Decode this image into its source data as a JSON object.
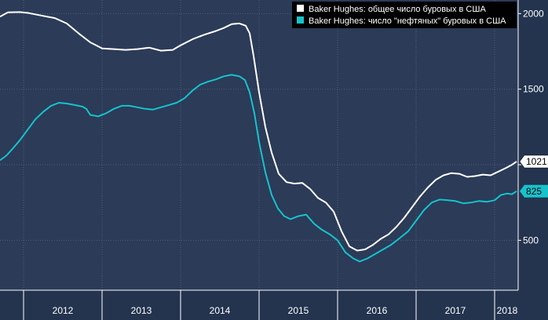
{
  "colors": {
    "background": "#24344f",
    "plot_background": "#2b3b58",
    "grid": "#4f6079",
    "series_total": "#ffffff",
    "series_oil": "#16c3cc"
  },
  "chart_data": {
    "type": "line",
    "title": "",
    "xlabel": "",
    "ylabel": "",
    "x_unit": "year (decimal)",
    "xlim": [
      2011.7,
      2018.3
    ],
    "ylim": [
      170,
      2090
    ],
    "y_axis_side": "right",
    "grid": true,
    "legend_position": "top-right",
    "x_ticks": [
      2012,
      2013,
      2014,
      2015,
      2016,
      2017,
      2018
    ],
    "y_ticks": [
      500,
      1000,
      1500,
      2000
    ],
    "y_tick_labels": [
      "500",
      "",
      "1500",
      "2000"
    ],
    "series": [
      {
        "name": "Baker Hughes: общее число буровых в США",
        "color": "#ffffff",
        "last_value_label": "1021",
        "points": [
          [
            2011.7,
            1980
          ],
          [
            2011.8,
            2008
          ],
          [
            2011.95,
            2010
          ],
          [
            2012.05,
            2005
          ],
          [
            2012.2,
            1990
          ],
          [
            2012.4,
            1970
          ],
          [
            2012.55,
            1935
          ],
          [
            2012.7,
            1870
          ],
          [
            2012.85,
            1810
          ],
          [
            2013.0,
            1770
          ],
          [
            2013.15,
            1765
          ],
          [
            2013.3,
            1760
          ],
          [
            2013.45,
            1765
          ],
          [
            2013.6,
            1775
          ],
          [
            2013.75,
            1755
          ],
          [
            2013.9,
            1760
          ],
          [
            2014.0,
            1790
          ],
          [
            2014.15,
            1830
          ],
          [
            2014.3,
            1860
          ],
          [
            2014.45,
            1885
          ],
          [
            2014.55,
            1905
          ],
          [
            2014.65,
            1930
          ],
          [
            2014.75,
            1935
          ],
          [
            2014.83,
            1920
          ],
          [
            2014.88,
            1870
          ],
          [
            2014.93,
            1720
          ],
          [
            2015.0,
            1480
          ],
          [
            2015.08,
            1250
          ],
          [
            2015.16,
            1080
          ],
          [
            2015.25,
            940
          ],
          [
            2015.35,
            885
          ],
          [
            2015.45,
            875
          ],
          [
            2015.55,
            880
          ],
          [
            2015.65,
            840
          ],
          [
            2015.75,
            780
          ],
          [
            2015.85,
            750
          ],
          [
            2015.95,
            690
          ],
          [
            2016.05,
            560
          ],
          [
            2016.15,
            460
          ],
          [
            2016.25,
            432
          ],
          [
            2016.35,
            440
          ],
          [
            2016.45,
            470
          ],
          [
            2016.55,
            510
          ],
          [
            2016.65,
            540
          ],
          [
            2016.75,
            590
          ],
          [
            2016.85,
            650
          ],
          [
            2016.95,
            720
          ],
          [
            2017.05,
            790
          ],
          [
            2017.15,
            850
          ],
          [
            2017.25,
            900
          ],
          [
            2017.35,
            930
          ],
          [
            2017.45,
            945
          ],
          [
            2017.55,
            940
          ],
          [
            2017.65,
            920
          ],
          [
            2017.75,
            925
          ],
          [
            2017.85,
            935
          ],
          [
            2017.95,
            930
          ],
          [
            2018.05,
            955
          ],
          [
            2018.15,
            980
          ],
          [
            2018.22,
            1000
          ],
          [
            2018.28,
            1021
          ]
        ]
      },
      {
        "name": "Baker Hughes: число \"нефтяных\" буровых в США",
        "color": "#16c3cc",
        "last_value_label": "825",
        "points": [
          [
            2011.7,
            1030
          ],
          [
            2011.78,
            1060
          ],
          [
            2011.85,
            1100
          ],
          [
            2011.95,
            1160
          ],
          [
            2012.05,
            1230
          ],
          [
            2012.15,
            1300
          ],
          [
            2012.25,
            1350
          ],
          [
            2012.35,
            1390
          ],
          [
            2012.45,
            1410
          ],
          [
            2012.55,
            1405
          ],
          [
            2012.65,
            1395
          ],
          [
            2012.75,
            1385
          ],
          [
            2012.8,
            1370
          ],
          [
            2012.85,
            1330
          ],
          [
            2012.95,
            1320
          ],
          [
            2013.05,
            1340
          ],
          [
            2013.15,
            1370
          ],
          [
            2013.25,
            1390
          ],
          [
            2013.35,
            1390
          ],
          [
            2013.45,
            1380
          ],
          [
            2013.55,
            1370
          ],
          [
            2013.65,
            1365
          ],
          [
            2013.75,
            1380
          ],
          [
            2013.85,
            1395
          ],
          [
            2013.95,
            1410
          ],
          [
            2014.05,
            1440
          ],
          [
            2014.15,
            1490
          ],
          [
            2014.25,
            1530
          ],
          [
            2014.35,
            1550
          ],
          [
            2014.45,
            1565
          ],
          [
            2014.55,
            1585
          ],
          [
            2014.65,
            1595
          ],
          [
            2014.75,
            1585
          ],
          [
            2014.82,
            1560
          ],
          [
            2014.88,
            1480
          ],
          [
            2014.94,
            1340
          ],
          [
            2015.0,
            1150
          ],
          [
            2015.08,
            950
          ],
          [
            2015.16,
            800
          ],
          [
            2015.24,
            710
          ],
          [
            2015.32,
            660
          ],
          [
            2015.4,
            640
          ],
          [
            2015.5,
            660
          ],
          [
            2015.6,
            670
          ],
          [
            2015.7,
            610
          ],
          [
            2015.8,
            570
          ],
          [
            2015.9,
            540
          ],
          [
            2016.0,
            500
          ],
          [
            2016.1,
            420
          ],
          [
            2016.2,
            380
          ],
          [
            2016.28,
            360
          ],
          [
            2016.38,
            380
          ],
          [
            2016.48,
            410
          ],
          [
            2016.58,
            440
          ],
          [
            2016.68,
            470
          ],
          [
            2016.78,
            510
          ],
          [
            2016.9,
            560
          ],
          [
            2017.0,
            630
          ],
          [
            2017.1,
            700
          ],
          [
            2017.2,
            750
          ],
          [
            2017.3,
            770
          ],
          [
            2017.4,
            765
          ],
          [
            2017.5,
            760
          ],
          [
            2017.6,
            745
          ],
          [
            2017.7,
            750
          ],
          [
            2017.8,
            760
          ],
          [
            2017.9,
            755
          ],
          [
            2018.0,
            765
          ],
          [
            2018.08,
            800
          ],
          [
            2018.16,
            810
          ],
          [
            2018.22,
            805
          ],
          [
            2018.28,
            825
          ]
        ]
      }
    ]
  }
}
